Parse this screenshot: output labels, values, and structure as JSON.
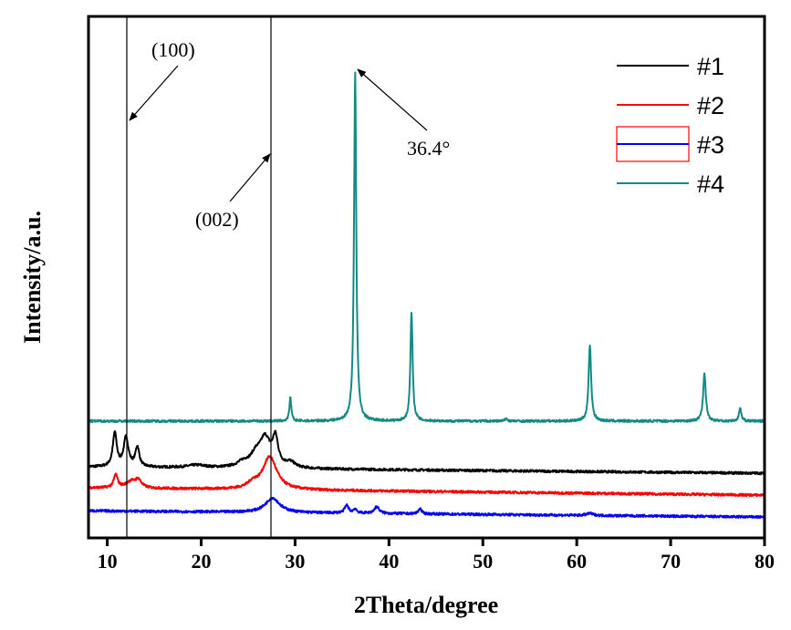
{
  "chart_data": {
    "type": "line",
    "title": "",
    "xlabel": "2Theta/degree",
    "ylabel": "Intensity/a.u.",
    "xlim": [
      8,
      80
    ],
    "ylim": [
      0,
      100
    ],
    "xticks": [
      10,
      20,
      30,
      40,
      50,
      60,
      70,
      80
    ],
    "xtick_labels": [
      "10",
      "20",
      "30",
      "40",
      "50",
      "60",
      "70",
      "80"
    ],
    "grid": false,
    "legend": {
      "placement": "top-right",
      "highlighted_entry": "#3",
      "highlight_color": "#ff0000"
    },
    "reference_lines": [
      {
        "x": 12.0,
        "label": "(100)"
      },
      {
        "x": 27.3,
        "label": "(002)"
      }
    ],
    "annotations": [
      {
        "text": "(100)",
        "points_to_x": 12.0
      },
      {
        "text": "(002)",
        "points_to_x": 27.3
      },
      {
        "text": "36.4°",
        "points_to_x": 36.4
      }
    ],
    "series": [
      {
        "name": "#1",
        "color": "#000000",
        "baseline": [
          13.6,
          12.4
        ],
        "peaks": [
          [
            10.8,
            6.5,
            0.25
          ],
          [
            12.0,
            5.6,
            0.3
          ],
          [
            13.2,
            3.8,
            0.25
          ],
          [
            24.5,
            1.0,
            0.8
          ],
          [
            25.8,
            2.0,
            0.6
          ],
          [
            26.8,
            5.5,
            0.7
          ],
          [
            27.9,
            5.2,
            0.35
          ],
          [
            29.5,
            1.0,
            0.6
          ],
          [
            19.5,
            0.5,
            1.2
          ]
        ]
      },
      {
        "name": "#2",
        "color": "#ff0000",
        "baseline": [
          9.6,
          8.2
        ],
        "peaks": [
          [
            10.9,
            2.5,
            0.25
          ],
          [
            12.5,
            1.2,
            0.6
          ],
          [
            13.3,
            1.5,
            0.4
          ],
          [
            25.5,
            1.0,
            0.6
          ],
          [
            27.3,
            6.3,
            0.9
          ]
        ]
      },
      {
        "name": "#3",
        "color": "#0000ff",
        "baseline": [
          5.2,
          4.0
        ],
        "peaks": [
          [
            27.6,
            2.8,
            0.9
          ],
          [
            35.5,
            1.5,
            0.25
          ],
          [
            36.4,
            0.8,
            0.2
          ],
          [
            38.7,
            1.3,
            0.3
          ],
          [
            43.3,
            1.0,
            0.2
          ],
          [
            61.4,
            0.4,
            0.4
          ]
        ]
      },
      {
        "name": "#4",
        "color": "#138a84",
        "baseline": [
          22.4,
          22.4
        ],
        "peaks": [
          [
            29.5,
            4.5,
            0.12
          ],
          [
            36.4,
            67.0,
            0.14
          ],
          [
            42.4,
            20.8,
            0.14
          ],
          [
            52.5,
            0.5,
            0.15
          ],
          [
            61.4,
            14.6,
            0.16
          ],
          [
            73.6,
            9.0,
            0.17
          ],
          [
            77.4,
            2.4,
            0.15
          ]
        ]
      }
    ]
  }
}
